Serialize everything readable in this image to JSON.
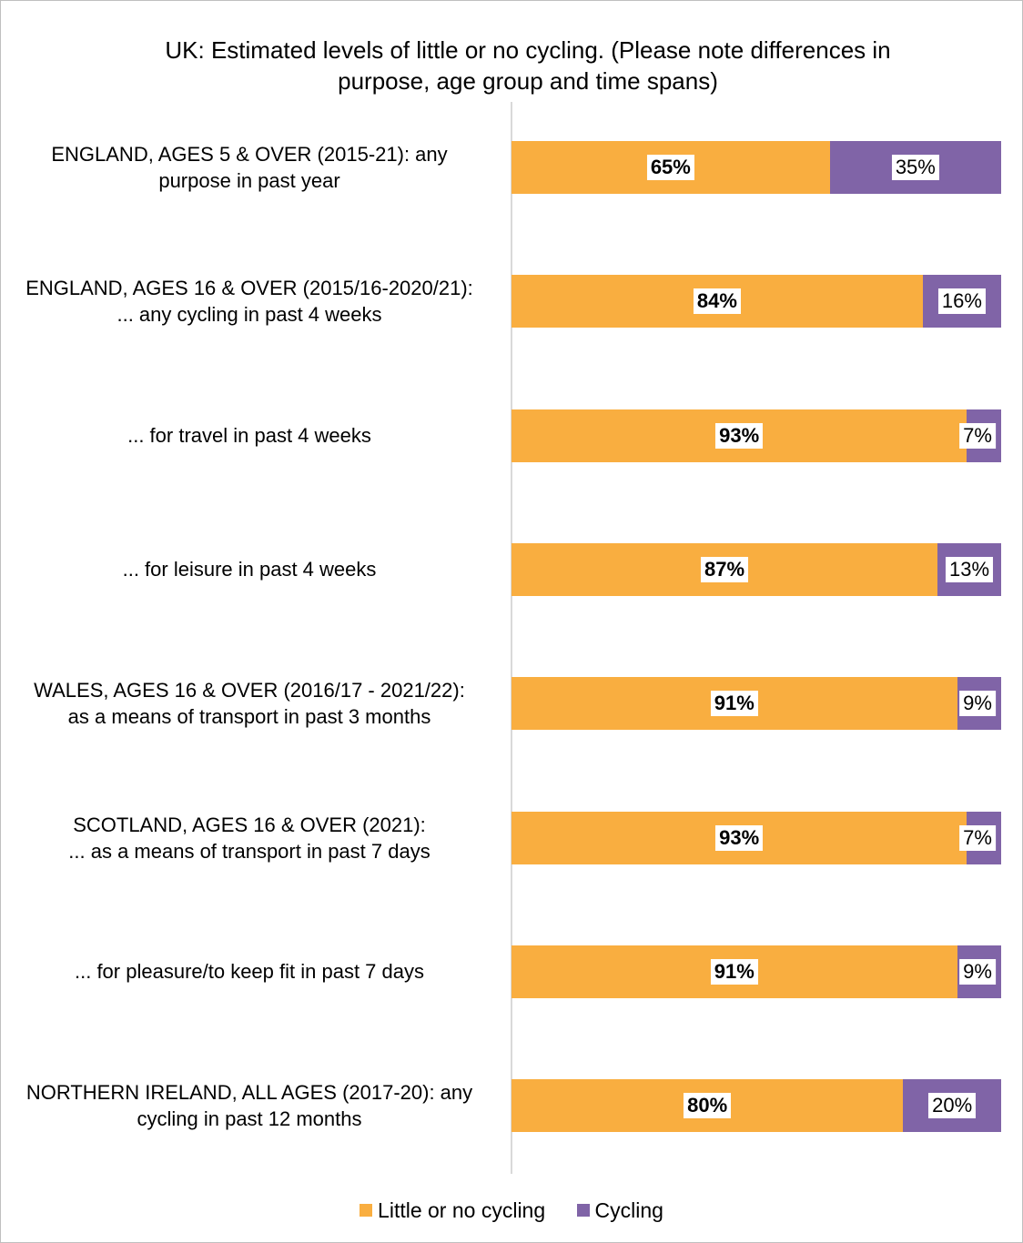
{
  "chart_data": {
    "type": "bar",
    "orientation": "horizontal",
    "stacked": true,
    "title": "UK: Estimated levels of little or no cycling. (Please note differences in purpose, age group and time spans)",
    "title_lines": [
      "UK: Estimated levels of little or no cycling. (Please note differences in",
      "purpose, age group and time spans)"
    ],
    "categories": [
      "ENGLAND, AGES 5 & OVER (2015-21): any\npurpose in past year",
      "ENGLAND, AGES 16 & OVER (2015/16-2020/21):\n... any cycling in past 4 weeks",
      "... for travel in past 4 weeks",
      "... for leisure in past 4 weeks",
      "WALES, AGES 16 & OVER (2016/17 - 2021/22):\nas a means of transport in past 3 months",
      "SCOTLAND, AGES 16 & OVER (2021):\n... as a means of transport in past 7 days",
      "... for pleasure/to keep fit in past 7 days",
      "NORTHERN IRELAND, ALL AGES (2017-20): any\ncycling in past 12 months"
    ],
    "series": [
      {
        "name": "Little or no cycling",
        "color": "#F9AE40",
        "values": [
          65,
          84,
          93,
          87,
          91,
          93,
          91,
          80
        ],
        "labels": [
          "65%",
          "84%",
          "93%",
          "87%",
          "91%",
          "93%",
          "91%",
          "80%"
        ]
      },
      {
        "name": "Cycling",
        "color": "#8064A7",
        "values": [
          35,
          16,
          7,
          13,
          9,
          7,
          9,
          20
        ],
        "labels": [
          "35%",
          "16%",
          "7%",
          "13%",
          "9%",
          "7%",
          "9%",
          "20%"
        ]
      }
    ],
    "xlim": [
      0,
      100
    ],
    "legend_position": "bottom",
    "grid": false
  }
}
